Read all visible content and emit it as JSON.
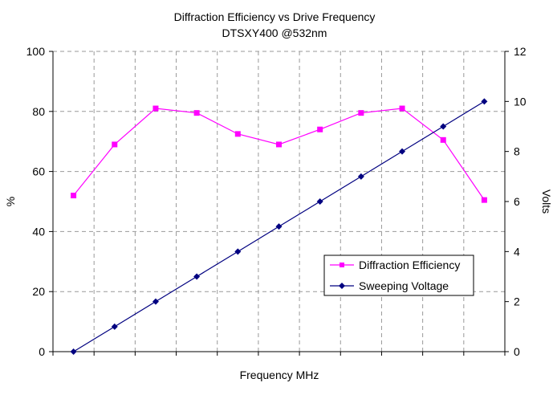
{
  "chart_data": {
    "type": "line",
    "title": "Diffraction Efficiency vs Drive Frequency",
    "subtitle": "DTSXY400 @532nm",
    "xlabel": "Frequency MHz",
    "ylabel": "%",
    "y2label": "Volts",
    "ylim": [
      0,
      100
    ],
    "y2lim": [
      0,
      12
    ],
    "yticks": [
      "0",
      "20",
      "40",
      "60",
      "80",
      "100"
    ],
    "y2ticks": [
      "0",
      "2",
      "4",
      "6",
      "8",
      "10",
      "12"
    ],
    "x": [
      1,
      2,
      3,
      4,
      5,
      6,
      7,
      8,
      9,
      10,
      11
    ],
    "xlim": [
      0.5,
      11.5
    ],
    "grid": true,
    "legend_position": "lower-right",
    "series": [
      {
        "name": "Diffraction Efficiency",
        "axis": "left",
        "color": "#ff00ff",
        "marker": "square",
        "values": [
          52,
          69,
          81,
          79.5,
          72.5,
          69,
          74,
          79.5,
          81,
          70.5,
          50.5
        ]
      },
      {
        "name": "Sweeping Voltage",
        "axis": "right",
        "color": "#000080",
        "marker": "diamond",
        "values": [
          0,
          1,
          2,
          3,
          4,
          5,
          6,
          7,
          8,
          9,
          10
        ]
      }
    ]
  }
}
